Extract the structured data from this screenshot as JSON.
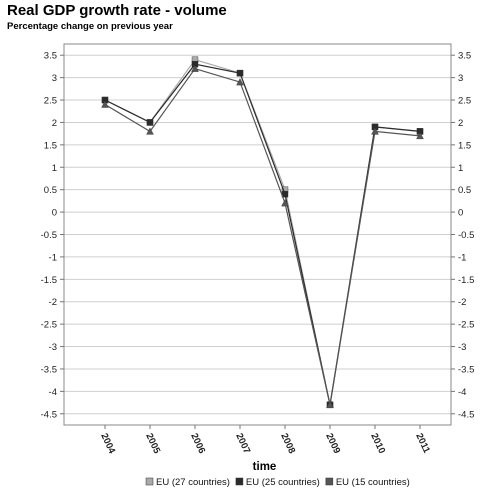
{
  "header": {
    "title": "Real GDP growth rate - volume",
    "subtitle": "Percentage change on previous year"
  },
  "chart_data": {
    "type": "line",
    "title": "Real GDP growth rate - volume",
    "subtitle": "Percentage change on previous year",
    "xlabel": "time",
    "ylabel": "",
    "categories": [
      "2004",
      "2005",
      "2006",
      "2007",
      "2008",
      "2009",
      "2010",
      "2011"
    ],
    "ylim": [
      -4.75,
      3.75
    ],
    "yticks": [
      3.5,
      3,
      2.5,
      2,
      1.5,
      1,
      0.5,
      0,
      -0.5,
      -1,
      -1.5,
      -2,
      -2.5,
      -3,
      -3.5,
      -4,
      -4.5
    ],
    "ytick_labels": [
      "3.5",
      "3",
      "2.5",
      "2",
      "1.5",
      "1",
      "0.5",
      "0",
      "-0.5",
      "-1",
      "-1.5",
      "-2",
      "-2.5",
      "-3",
      "-3.5",
      "-4",
      "-4.5"
    ],
    "grid": true,
    "y_axis_both_sides": true,
    "legend_position": "bottom",
    "series": [
      {
        "name": "EU (27 countries)",
        "values": [
          2.5,
          2.0,
          3.4,
          3.1,
          0.5,
          -4.3,
          1.9,
          1.8
        ],
        "color": "#aaaaaa",
        "marker": "square"
      },
      {
        "name": "EU (25 countries)",
        "values": [
          2.5,
          2.0,
          3.3,
          3.1,
          0.4,
          -4.3,
          1.9,
          1.8
        ],
        "color": "#2b2b2b",
        "marker": "square"
      },
      {
        "name": "EU (15 countries)",
        "values": [
          2.4,
          1.8,
          3.2,
          2.9,
          0.2,
          -4.3,
          1.8,
          1.7
        ],
        "color": "#555555",
        "marker": "triangle"
      }
    ]
  }
}
